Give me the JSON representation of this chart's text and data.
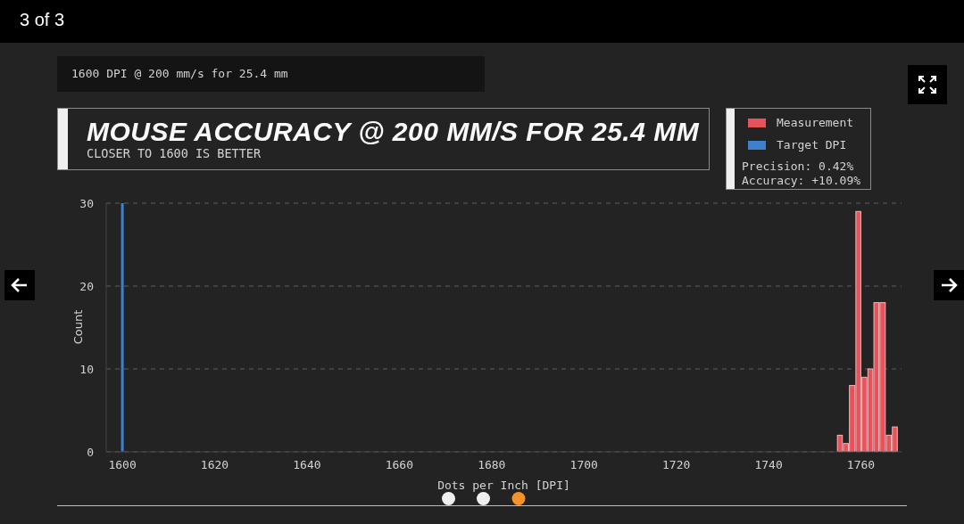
{
  "chart_data": {
    "type": "histogram",
    "title": "MOUSE ACCURACY @ 200 MM/S FOR 25.4 MM",
    "subtitle": "CLOSER TO 1600 IS BETTER",
    "xlabel": "Dots per Inch [DPI]",
    "ylabel": "Count",
    "annotations": [
      "3 of 3",
      "1600 DPI @ 200 mm/s for 25.4 mm",
      "Precision: 0.42%",
      "Accuracy: +10.09%"
    ],
    "bins": [
      1754.8,
      1756.1,
      1757.4,
      1758.8,
      1760.1,
      1761.4,
      1762.7,
      1764.0,
      1765.4,
      1766.7,
      1768.0
    ],
    "series": [
      {
        "name": "Measurement",
        "color": "#e8525a",
        "values": [
          2,
          1,
          8,
          29,
          9,
          10,
          18,
          18,
          2,
          3
        ]
      }
    ],
    "ref_lines": [
      {
        "axis": "x",
        "value": 1600,
        "label": "Target DPI",
        "color": "#3f7fcc"
      }
    ],
    "xlim": [
      1596.5,
      1768.8
    ],
    "xticks": [
      1600,
      1620,
      1640,
      1660,
      1680,
      1700,
      1720,
      1740,
      1760
    ],
    "ylim": [
      0,
      30
    ],
    "yticks": [
      0,
      10,
      20,
      30
    ],
    "grid": "y",
    "legend": "top right"
  }
}
